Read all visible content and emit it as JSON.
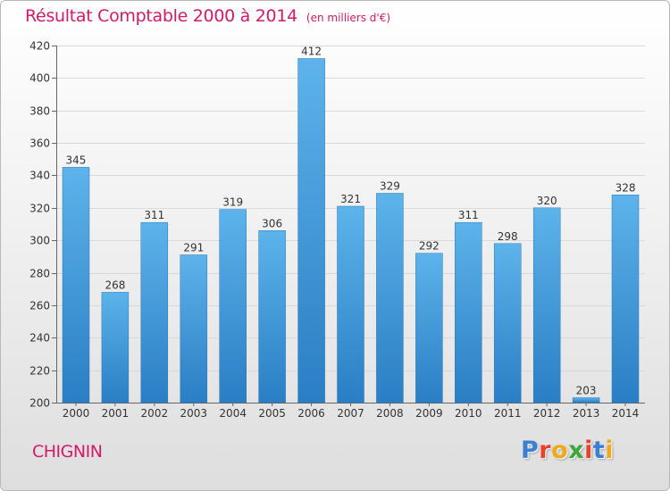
{
  "header": {
    "title": "Résultat Comptable 2000 à 2014",
    "subtitle": "(en milliers d'€)"
  },
  "footer": {
    "place": "CHIGNIN",
    "logo_letters": [
      "P",
      "r",
      "o",
      "x",
      "i",
      "t",
      "i"
    ],
    "logo_colors": [
      "#3a7fd0",
      "#e8412c",
      "#f0a81c",
      "#3fa63d",
      "#e8412c",
      "#3a7fd0",
      "#f0a81c"
    ]
  },
  "chart_data": {
    "type": "bar",
    "title": "Résultat Comptable 2000 à 2014",
    "subtitle": "(en milliers d'€)",
    "categories": [
      "2000",
      "2001",
      "2002",
      "2003",
      "2004",
      "2005",
      "2006",
      "2007",
      "2008",
      "2009",
      "2010",
      "2011",
      "2012",
      "2013",
      "2014"
    ],
    "values": [
      345,
      268,
      311,
      291,
      319,
      306,
      412,
      321,
      329,
      292,
      311,
      298,
      320,
      203,
      328
    ],
    "ylim": [
      200,
      420
    ],
    "yticks": [
      200,
      220,
      240,
      260,
      280,
      300,
      320,
      340,
      360,
      380,
      400,
      420
    ],
    "grid": true,
    "legend": "none",
    "bar_color_top": "#5db3ea",
    "bar_color_bottom": "#2a7ec4",
    "label_color": "#333333"
  }
}
